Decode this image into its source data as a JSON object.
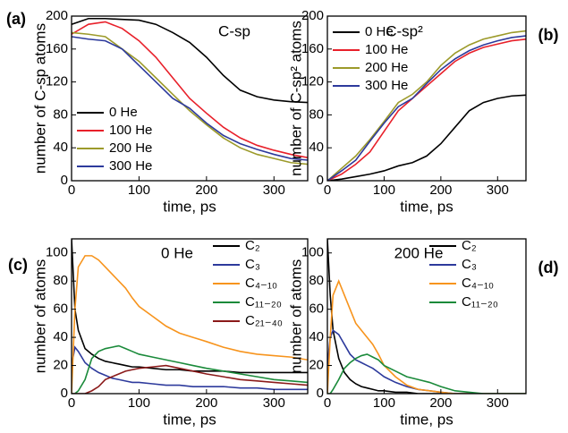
{
  "chart_data": [
    {
      "type": "line",
      "panel_label": "(a)",
      "annotation": "C-sp",
      "xlabel": "time, ps",
      "ylabel": "number of C-sp atoms",
      "x": [
        0,
        25,
        50,
        75,
        100,
        125,
        150,
        175,
        200,
        225,
        250,
        275,
        300,
        325,
        350
      ],
      "xlim": [
        0,
        350
      ],
      "xticks": [
        0,
        100,
        200,
        300
      ],
      "ylim": [
        0,
        200
      ],
      "yticks": [
        0,
        40,
        80,
        120,
        160,
        200
      ],
      "legend": "lower left",
      "series": [
        {
          "name": "0 He",
          "color": "#000000",
          "values": [
            190,
            197,
            197,
            196,
            195,
            190,
            180,
            168,
            150,
            128,
            110,
            102,
            98,
            96,
            95
          ]
        },
        {
          "name": "100 He",
          "color": "#e8202a",
          "values": [
            178,
            190,
            193,
            185,
            170,
            150,
            125,
            100,
            82,
            65,
            52,
            43,
            37,
            32,
            28
          ]
        },
        {
          "name": "200 He",
          "color": "#9c9a2a",
          "values": [
            180,
            178,
            175,
            160,
            145,
            125,
            105,
            85,
            68,
            52,
            40,
            32,
            27,
            22,
            20
          ]
        },
        {
          "name": "300 He",
          "color": "#2d3a9c",
          "values": [
            175,
            172,
            170,
            160,
            140,
            120,
            100,
            88,
            70,
            55,
            45,
            38,
            32,
            27,
            25
          ]
        }
      ]
    },
    {
      "type": "line",
      "panel_label": "(b)",
      "annotation": "C-sp²",
      "xlabel": "time, ps",
      "ylabel": "number of C-sp² atoms",
      "x": [
        0,
        25,
        50,
        75,
        100,
        125,
        150,
        175,
        200,
        225,
        250,
        275,
        300,
        325,
        350
      ],
      "xlim": [
        0,
        350
      ],
      "xticks": [
        0,
        100,
        200,
        300
      ],
      "ylim": [
        0,
        200
      ],
      "yticks": [
        0,
        40,
        80,
        120,
        160,
        200
      ],
      "legend": "upper left",
      "series": [
        {
          "name": "0 He",
          "color": "#000000",
          "values": [
            0,
            2,
            5,
            8,
            12,
            18,
            22,
            30,
            45,
            65,
            85,
            95,
            100,
            103,
            104
          ]
        },
        {
          "name": "100 He",
          "color": "#e8202a",
          "values": [
            0,
            8,
            20,
            35,
            60,
            85,
            100,
            115,
            130,
            145,
            155,
            162,
            166,
            170,
            172
          ]
        },
        {
          "name": "200 He",
          "color": "#9c9a2a",
          "values": [
            0,
            15,
            30,
            50,
            72,
            95,
            105,
            120,
            140,
            155,
            165,
            172,
            176,
            180,
            182
          ]
        },
        {
          "name": "300 He",
          "color": "#2d3a9c",
          "values": [
            0,
            12,
            25,
            48,
            70,
            90,
            100,
            118,
            135,
            148,
            158,
            165,
            170,
            174,
            176
          ]
        }
      ]
    },
    {
      "type": "line",
      "panel_label": "(c)",
      "annotation": "0 He",
      "xlabel": "time, ps",
      "ylabel": "number of atoms",
      "x": [
        0,
        5,
        10,
        20,
        30,
        40,
        50,
        60,
        70,
        80,
        90,
        100,
        120,
        140,
        160,
        180,
        200,
        225,
        250,
        275,
        300,
        325,
        350
      ],
      "xlim": [
        0,
        350
      ],
      "xticks": [
        0,
        100,
        200,
        300
      ],
      "ylim": [
        0,
        110
      ],
      "yticks": [
        0,
        20,
        40,
        60,
        80,
        100
      ],
      "legend": "upper right",
      "series": [
        {
          "name": "C₂",
          "color": "#000000",
          "values": [
            110,
            60,
            45,
            32,
            28,
            25,
            23,
            22,
            21,
            20,
            19,
            19,
            18,
            17,
            17,
            16,
            16,
            16,
            15,
            15,
            15,
            15,
            15
          ]
        },
        {
          "name": "C₃",
          "color": "#2d3a9c",
          "values": [
            20,
            33,
            30,
            22,
            18,
            15,
            13,
            11,
            10,
            9,
            8,
            8,
            7,
            6,
            6,
            5,
            5,
            5,
            4,
            4,
            3,
            3,
            3
          ]
        },
        {
          "name": "C₄₋₁₀",
          "color": "#f7941d",
          "values": [
            0,
            60,
            90,
            98,
            98,
            95,
            90,
            85,
            80,
            75,
            68,
            62,
            55,
            48,
            43,
            40,
            37,
            33,
            30,
            28,
            27,
            26,
            24
          ]
        },
        {
          "name": "C₁₁₋₂₀",
          "color": "#1a8a3a",
          "values": [
            0,
            0,
            2,
            10,
            25,
            30,
            32,
            33,
            34,
            32,
            30,
            28,
            26,
            24,
            22,
            20,
            18,
            16,
            14,
            12,
            10,
            9,
            8
          ]
        },
        {
          "name": "C₂₁₋₄₀",
          "color": "#8b1a1a",
          "values": [
            0,
            0,
            0,
            0,
            2,
            5,
            10,
            12,
            14,
            16,
            17,
            18,
            19,
            20,
            18,
            16,
            14,
            12,
            10,
            9,
            8,
            7,
            6
          ]
        }
      ]
    },
    {
      "type": "line",
      "panel_label": "(d)",
      "annotation": "200 He",
      "xlabel": "time, ps",
      "ylabel": "number of atoms",
      "x": [
        0,
        5,
        10,
        20,
        30,
        40,
        50,
        60,
        70,
        80,
        90,
        100,
        120,
        140,
        160,
        180,
        200,
        225,
        250,
        275,
        300,
        325,
        350
      ],
      "xlim": [
        0,
        350
      ],
      "xticks": [
        0,
        100,
        200,
        300
      ],
      "ylim": [
        0,
        110
      ],
      "yticks": [
        0,
        20,
        40,
        60,
        80,
        100
      ],
      "legend": "upper right",
      "series": [
        {
          "name": "C₂",
          "color": "#000000",
          "values": [
            110,
            70,
            45,
            25,
            15,
            10,
            7,
            5,
            4,
            3,
            2,
            2,
            1,
            1,
            0,
            0,
            0,
            0,
            0,
            0,
            0,
            0,
            0
          ]
        },
        {
          "name": "C₃",
          "color": "#2d3a9c",
          "values": [
            20,
            40,
            45,
            42,
            35,
            28,
            24,
            22,
            20,
            18,
            15,
            12,
            8,
            5,
            3,
            2,
            1,
            0,
            0,
            0,
            0,
            0,
            0
          ]
        },
        {
          "name": "C₄₋₁₀",
          "color": "#f7941d",
          "values": [
            0,
            40,
            70,
            80,
            70,
            60,
            50,
            45,
            40,
            35,
            28,
            20,
            12,
            6,
            3,
            2,
            1,
            0,
            0,
            0,
            0,
            0,
            0
          ]
        },
        {
          "name": "C₁₁₋₂₀",
          "color": "#1a8a3a",
          "values": [
            0,
            0,
            3,
            10,
            18,
            22,
            25,
            27,
            28,
            26,
            24,
            20,
            16,
            12,
            10,
            8,
            5,
            2,
            1,
            0,
            0,
            0,
            0
          ]
        }
      ]
    }
  ]
}
